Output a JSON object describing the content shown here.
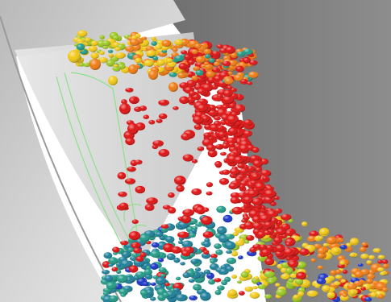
{
  "scene": {
    "colors": {
      "background": "#ffffff",
      "shell_light": "#e9e9e9",
      "shell_mid": "#cfcfcf",
      "shell_dark": "#8a8a8a",
      "back_wall": "#7d7d7d",
      "guide_lines": "#8fe08a",
      "particle_palette": [
        "#e01010",
        "#f07a10",
        "#f2c814",
        "#9ac71e",
        "#1f9a86",
        "#1b7f9a",
        "#1a33c8"
      ]
    }
  }
}
